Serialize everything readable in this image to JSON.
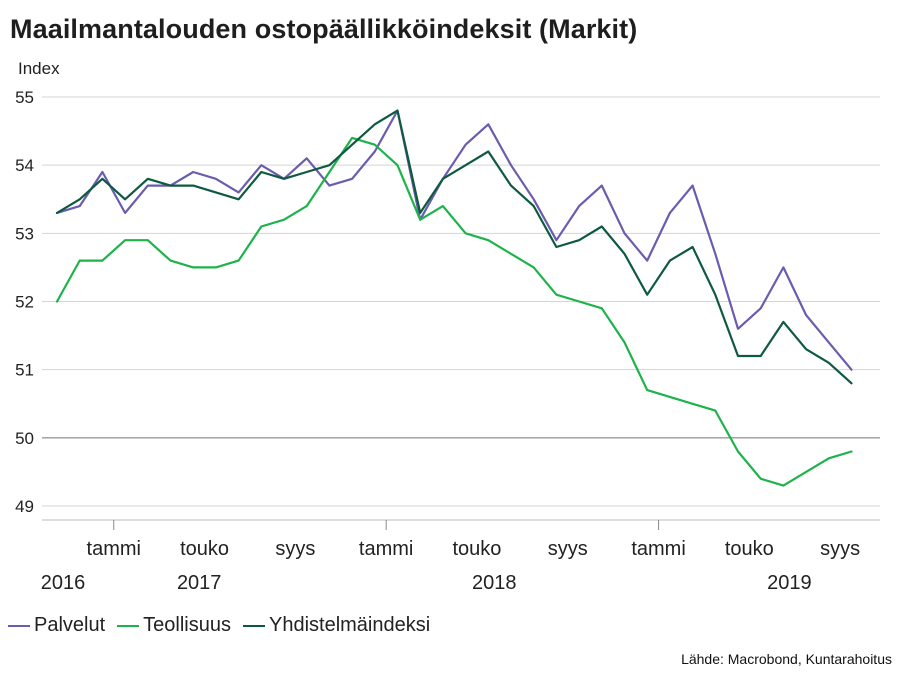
{
  "chart_data": {
    "type": "line",
    "title": "Maailmantalouden ostopäällikköindeksit (Markit)",
    "ylabel": "Index",
    "ylim": [
      49,
      55
    ],
    "yticks": [
      49,
      50,
      51,
      52,
      53,
      54,
      55
    ],
    "grid": true,
    "reference_line": 50,
    "x_start": "2015-12",
    "x_end": "2019-09",
    "x_tick_labels": [
      {
        "label": "tammi",
        "month": "2016-01"
      },
      {
        "label": "touko",
        "month": "2016-05"
      },
      {
        "label": "syys",
        "month": "2016-09"
      },
      {
        "label": "tammi",
        "month": "2017-01"
      },
      {
        "label": "touko",
        "month": "2017-05"
      },
      {
        "label": "syys",
        "month": "2017-09"
      },
      {
        "label": "tammi",
        "month": "2018-01"
      },
      {
        "label": "touko",
        "month": "2018-05"
      },
      {
        "label": "syys",
        "month": "2018-09"
      }
    ],
    "year_labels": [
      {
        "label": "2016",
        "month": "2015-12"
      },
      {
        "label": "2017",
        "month": "2016-06"
      },
      {
        "label": "2018",
        "month": "2017-07"
      },
      {
        "label": "2019",
        "month": "2018-08"
      }
    ],
    "year_divider_months": [
      "2016-01",
      "2017-01",
      "2018-01",
      "2019-01"
    ],
    "series": [
      {
        "name": "Palvelut",
        "color": "#6a5cae",
        "values": [
          53.3,
          53.4,
          53.9,
          53.3,
          53.7,
          53.7,
          53.9,
          53.8,
          53.6,
          54.0,
          53.8,
          54.1,
          53.7,
          53.8,
          54.2,
          54.8,
          53.2,
          53.8,
          54.3,
          54.6,
          54.0,
          53.5,
          52.9,
          53.4,
          53.7,
          53.0,
          52.6,
          53.3,
          53.7,
          52.7,
          51.6,
          51.9,
          52.5,
          51.8,
          51.4,
          51.0
        ]
      },
      {
        "name": "Teollisuus",
        "color": "#1db34a",
        "values": [
          52.0,
          52.6,
          52.6,
          52.9,
          52.9,
          52.6,
          52.5,
          52.5,
          52.6,
          53.1,
          53.2,
          53.4,
          53.9,
          54.4,
          54.3,
          54.0,
          53.2,
          53.4,
          53.0,
          52.9,
          52.7,
          52.5,
          52.1,
          52.0,
          51.9,
          51.4,
          50.7,
          50.6,
          50.5,
          50.4,
          49.8,
          49.4,
          49.3,
          49.5,
          49.7,
          49.8
        ]
      },
      {
        "name": "Yhdistelmäindeksi",
        "color": "#0e5a40",
        "values": [
          53.3,
          53.5,
          53.8,
          53.5,
          53.8,
          53.7,
          53.7,
          53.6,
          53.5,
          53.9,
          53.8,
          53.9,
          54.0,
          54.3,
          54.6,
          54.8,
          53.3,
          53.8,
          54.0,
          54.2,
          53.7,
          53.4,
          52.8,
          52.9,
          53.1,
          52.7,
          52.1,
          52.6,
          52.8,
          52.1,
          51.2,
          51.2,
          51.7,
          51.3,
          51.1,
          50.8
        ]
      }
    ]
  },
  "source": "Lähde: Macrobond, Kuntarahoitus"
}
